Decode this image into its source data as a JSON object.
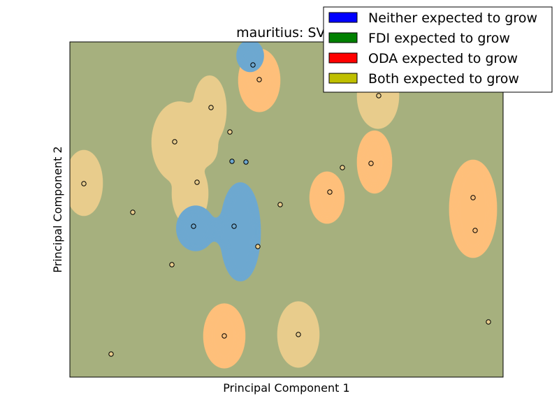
{
  "chart_data": {
    "type": "scatter",
    "title": "mauritius: SVM",
    "xlabel": "Principal Component 1",
    "ylabel": "Principal Component 2",
    "xlim": [
      0,
      620
    ],
    "ylim": [
      0,
      480
    ],
    "grid": false,
    "x_ticks_shown": false,
    "y_ticks_shown": false,
    "legend_position": "top-right",
    "background_color": "#a6b07e",
    "legend": [
      {
        "label": "Neither expected to grow",
        "color": "#0000ff"
      },
      {
        "label": "FDI expected to grow",
        "color": "#008000"
      },
      {
        "label": "ODA expected to grow",
        "color": "#ff0000"
      },
      {
        "label": "Both expected to grow",
        "color": "#bfbf00"
      }
    ],
    "region_colors": {
      "neither": "#6da8d0",
      "oda": "#febf7a",
      "both": "#e8cc8c"
    },
    "regions": [
      {
        "class": "neither",
        "cx": 258,
        "cy": 460,
        "rx": 18,
        "ry": 22
      },
      {
        "class": "neither",
        "cx": 244,
        "cy": 208,
        "rx": 27,
        "ry": 70
      },
      {
        "class": "neither",
        "cx": 180,
        "cy": 213,
        "rx": 26,
        "ry": 31
      },
      {
        "class": "neither",
        "cx": 228,
        "cy": 210,
        "rx": 22,
        "ry": 22
      },
      {
        "class": "oda",
        "cx": 271,
        "cy": 425,
        "rx": 28,
        "ry": 44
      },
      {
        "class": "oda",
        "cx": 368,
        "cy": 257,
        "rx": 23,
        "ry": 36
      },
      {
        "class": "oda",
        "cx": 436,
        "cy": 308,
        "rx": 23,
        "ry": 44
      },
      {
        "class": "oda",
        "cx": 577,
        "cy": 241,
        "rx": 32,
        "ry": 69
      },
      {
        "class": "oda",
        "cx": 221,
        "cy": 59,
        "rx": 28,
        "ry": 45
      },
      {
        "class": "both",
        "cx": 20,
        "cy": 278,
        "rx": 25,
        "ry": 46
      },
      {
        "class": "both",
        "cx": 327,
        "cy": 61,
        "rx": 28,
        "ry": 46
      },
      {
        "class": "both",
        "cx": 441,
        "cy": 403,
        "rx": 28,
        "ry": 46
      },
      {
        "class": "both",
        "cx": 157,
        "cy": 336,
        "rx": 38,
        "ry": 57
      },
      {
        "class": "both",
        "cx": 200,
        "cy": 383,
        "rx": 22,
        "ry": 48
      },
      {
        "class": "both",
        "cx": 172,
        "cy": 263,
        "rx": 24,
        "ry": 45
      },
      {
        "class": "both",
        "cx": 190,
        "cy": 330,
        "rx": 20,
        "ry": 28
      }
    ],
    "points": [
      {
        "x": 262,
        "y": 447,
        "class": "neither"
      },
      {
        "x": 271,
        "y": 426,
        "class": "oda"
      },
      {
        "x": 202,
        "y": 386,
        "class": "both"
      },
      {
        "x": 229,
        "y": 351,
        "class": "both"
      },
      {
        "x": 150,
        "y": 337,
        "class": "both"
      },
      {
        "x": 232,
        "y": 309,
        "class": "neither"
      },
      {
        "x": 252,
        "y": 308,
        "class": "neither"
      },
      {
        "x": 182,
        "y": 279,
        "class": "both"
      },
      {
        "x": 20,
        "y": 277,
        "class": "both"
      },
      {
        "x": 90,
        "y": 236,
        "class": "both"
      },
      {
        "x": 301,
        "y": 247,
        "class": "both"
      },
      {
        "x": 372,
        "y": 265,
        "class": "oda"
      },
      {
        "x": 390,
        "y": 300,
        "class": "both"
      },
      {
        "x": 431,
        "y": 306,
        "class": "oda"
      },
      {
        "x": 442,
        "y": 403,
        "class": "both"
      },
      {
        "x": 577,
        "y": 257,
        "class": "oda"
      },
      {
        "x": 580,
        "y": 210,
        "class": "oda"
      },
      {
        "x": 177,
        "y": 216,
        "class": "neither"
      },
      {
        "x": 235,
        "y": 216,
        "class": "neither"
      },
      {
        "x": 269,
        "y": 187,
        "class": "both"
      },
      {
        "x": 146,
        "y": 161,
        "class": "both"
      },
      {
        "x": 599,
        "y": 79,
        "class": "both"
      },
      {
        "x": 221,
        "y": 59,
        "class": "oda"
      },
      {
        "x": 327,
        "y": 61,
        "class": "both"
      },
      {
        "x": 59,
        "y": 33,
        "class": "both"
      }
    ]
  }
}
